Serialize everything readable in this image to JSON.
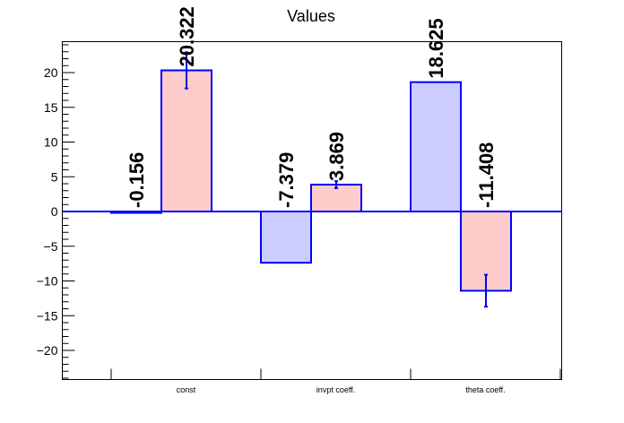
{
  "chart_data": {
    "type": "bar",
    "title": "Values",
    "xlabel": "",
    "ylabel": "",
    "ylim": [
      -24,
      24
    ],
    "yticks": [
      -20,
      -15,
      -10,
      -5,
      0,
      5,
      10,
      15,
      20
    ],
    "ytick_labels": [
      "−20",
      "−15",
      "−10",
      "−5",
      "0",
      "5",
      "10",
      "15",
      "20"
    ],
    "categories": [
      "const",
      "invpt coeff.",
      "theta coeff."
    ],
    "grid": false,
    "legend": "none",
    "series": [
      {
        "color_fill": "#ccccff",
        "color_edge": "#0000ff",
        "values": [
          -0.156,
          -7.379,
          18.625
        ],
        "labels": [
          "-0.156",
          "-7.379",
          "18.625"
        ],
        "errors": [
          0,
          0,
          0
        ]
      },
      {
        "color_fill": "#ffcccc",
        "color_edge": "#0000ff",
        "values": [
          20.322,
          3.869,
          -11.408
        ],
        "labels": [
          "20.322",
          "3.869",
          "-11.408"
        ],
        "errors": [
          2.6,
          0.5,
          2.3
        ]
      }
    ]
  }
}
